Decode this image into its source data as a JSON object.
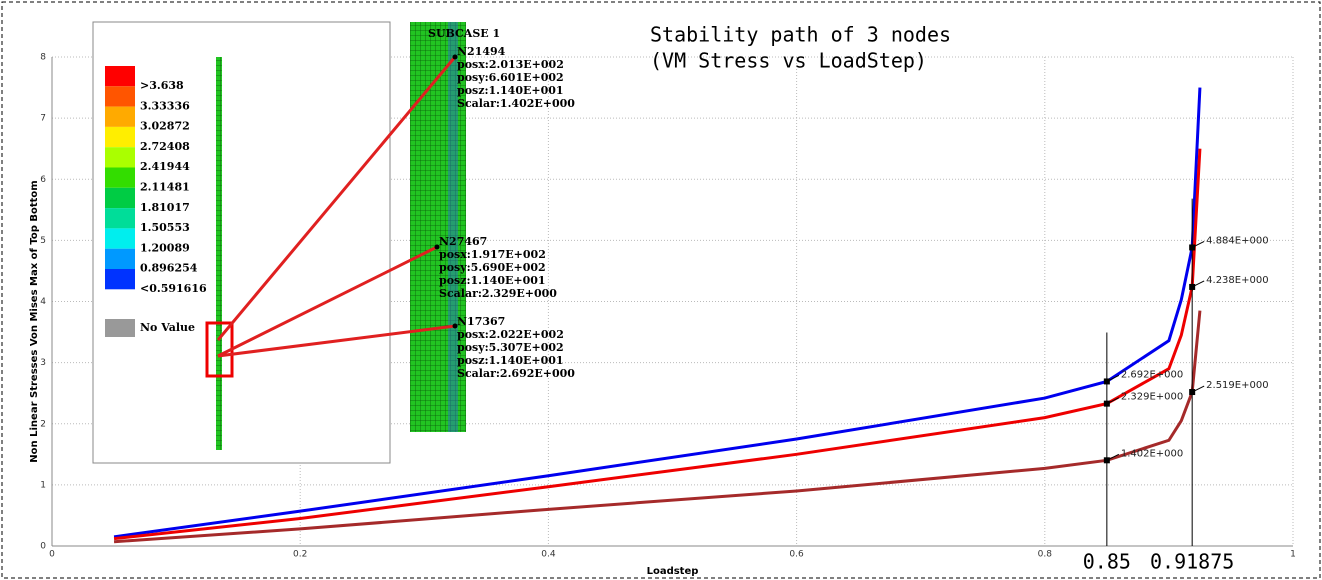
{
  "chart_data": {
    "type": "line",
    "title": [
      "Stability path of 3 nodes",
      "(VM Stress vs LoadStep)"
    ],
    "x_label": "Loadstep",
    "y_label": "Non Linear Stresses Von Mises Max of Top Bottom",
    "x": [
      0.05,
      0.2,
      0.4,
      0.6,
      0.8,
      0.85,
      0.9,
      0.91,
      0.91875,
      0.925
    ],
    "series": [
      {
        "color": "#0000ee",
        "values": [
          0.15,
          0.57,
          1.15,
          1.75,
          2.42,
          2.692,
          3.36,
          4.03,
          4.884,
          7.5
        ]
      },
      {
        "color": "#ee0000",
        "values": [
          0.12,
          0.45,
          0.97,
          1.5,
          2.1,
          2.329,
          2.9,
          3.45,
          4.238,
          6.5
        ]
      },
      {
        "color": "#a52a2a",
        "values": [
          0.07,
          0.28,
          0.6,
          0.9,
          1.27,
          1.402,
          1.73,
          2.05,
          2.519,
          3.85
        ]
      }
    ],
    "annotations": [
      {
        "x": 0.85,
        "y": 2.692,
        "label": "2.692E+000"
      },
      {
        "x": 0.85,
        "y": 2.329,
        "label": "2.329E+000"
      },
      {
        "x": 0.85,
        "y": 1.402,
        "label": "1.402E+000"
      },
      {
        "x": 0.91875,
        "y": 4.884,
        "label": "4.884E+000"
      },
      {
        "x": 0.91875,
        "y": 4.238,
        "label": "4.238E+000"
      },
      {
        "x": 0.91875,
        "y": 2.519,
        "label": "2.519E+000"
      }
    ],
    "markers": [
      0.85,
      0.91875
    ],
    "xlim": [
      0,
      1
    ],
    "ylim": [
      0,
      8
    ],
    "xticks": [
      0,
      0.2,
      0.4,
      0.6,
      0.8,
      1
    ],
    "yticks": [
      0,
      1,
      2,
      3,
      4,
      5,
      6,
      7,
      8
    ],
    "grid": true
  },
  "inset": {
    "legend": [
      {
        "label": ">3.638",
        "color": "#ff0000"
      },
      {
        "label": "3.33336",
        "color": "#ff5500"
      },
      {
        "label": "3.02872",
        "color": "#ffaa00"
      },
      {
        "label": "2.72408",
        "color": "#ffee00"
      },
      {
        "label": "2.41944",
        "color": "#aaff00"
      },
      {
        "label": "2.11481",
        "color": "#33dd00"
      },
      {
        "label": "1.81017",
        "color": "#00cc44"
      },
      {
        "label": "1.50553",
        "color": "#00dd99"
      },
      {
        "label": "1.20089",
        "color": "#00eeee"
      },
      {
        "label": "0.896254",
        "color": "#0099ff"
      },
      {
        "label": "<0.591616",
        "color": "#0033ff"
      }
    ],
    "no_value": {
      "label": "No Value",
      "color": "#999999"
    },
    "subcase": "SUBCASE 1",
    "nodes": [
      {
        "lines": [
          "N21494",
          "posx:2.013E+002",
          "posy:6.601E+002",
          "posz:1.140E+001",
          "Scalar:1.402E+000"
        ]
      },
      {
        "lines": [
          "N27467",
          "posx:1.917E+002",
          "posy:5.690E+002",
          "posz:1.140E+001",
          "Scalar:2.329E+000"
        ]
      },
      {
        "lines": [
          "N17367",
          "posx:2.022E+002",
          "posy:5.307E+002",
          "posz:1.140E+001",
          "Scalar:2.692E+000"
        ]
      }
    ]
  }
}
